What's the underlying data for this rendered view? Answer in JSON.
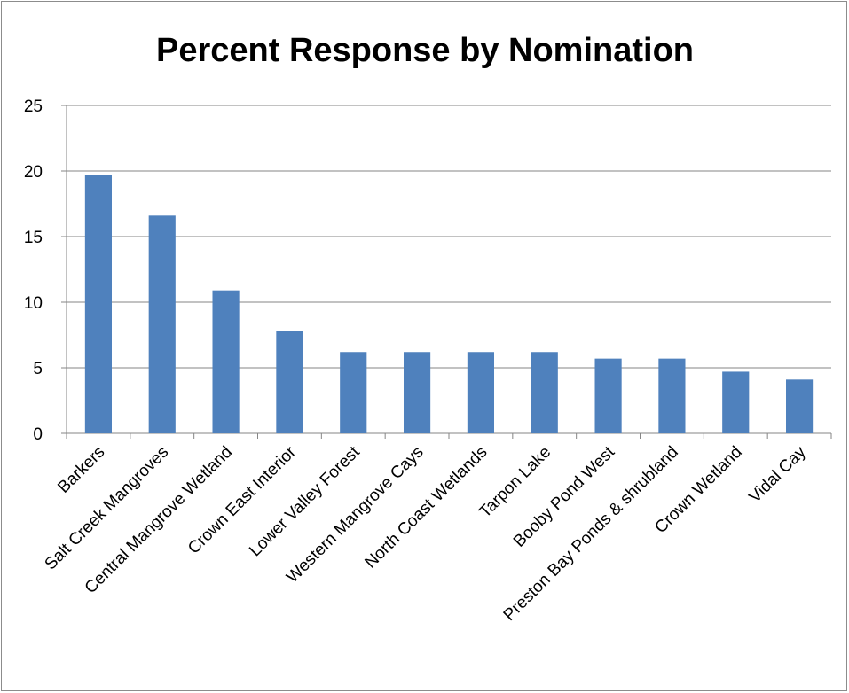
{
  "chart_data": {
    "type": "bar",
    "title": "Percent Response by Nomination",
    "xlabel": "",
    "ylabel": "",
    "categories": [
      "Barkers",
      "Salt Creek Mangroves",
      "Central Mangrove Wetland",
      "Crown East Interior",
      "Lower Valley Forest",
      "Western Mangrove Cays",
      "North Coast Wetlands",
      "Tarpon Lake",
      "Booby Pond West",
      "Preston Bay Ponds & shrubland",
      "Crown Wetland",
      "Vidal Cay"
    ],
    "values": [
      19.7,
      16.6,
      10.9,
      7.8,
      6.2,
      6.2,
      6.2,
      6.2,
      5.7,
      5.7,
      4.7,
      4.1
    ],
    "ylim": [
      0,
      25
    ],
    "yticks": [
      0,
      5,
      10,
      15,
      20,
      25
    ],
    "grid": true,
    "legend": "none",
    "bar_color": "#4f81bd",
    "gridline_color": "#868686"
  }
}
